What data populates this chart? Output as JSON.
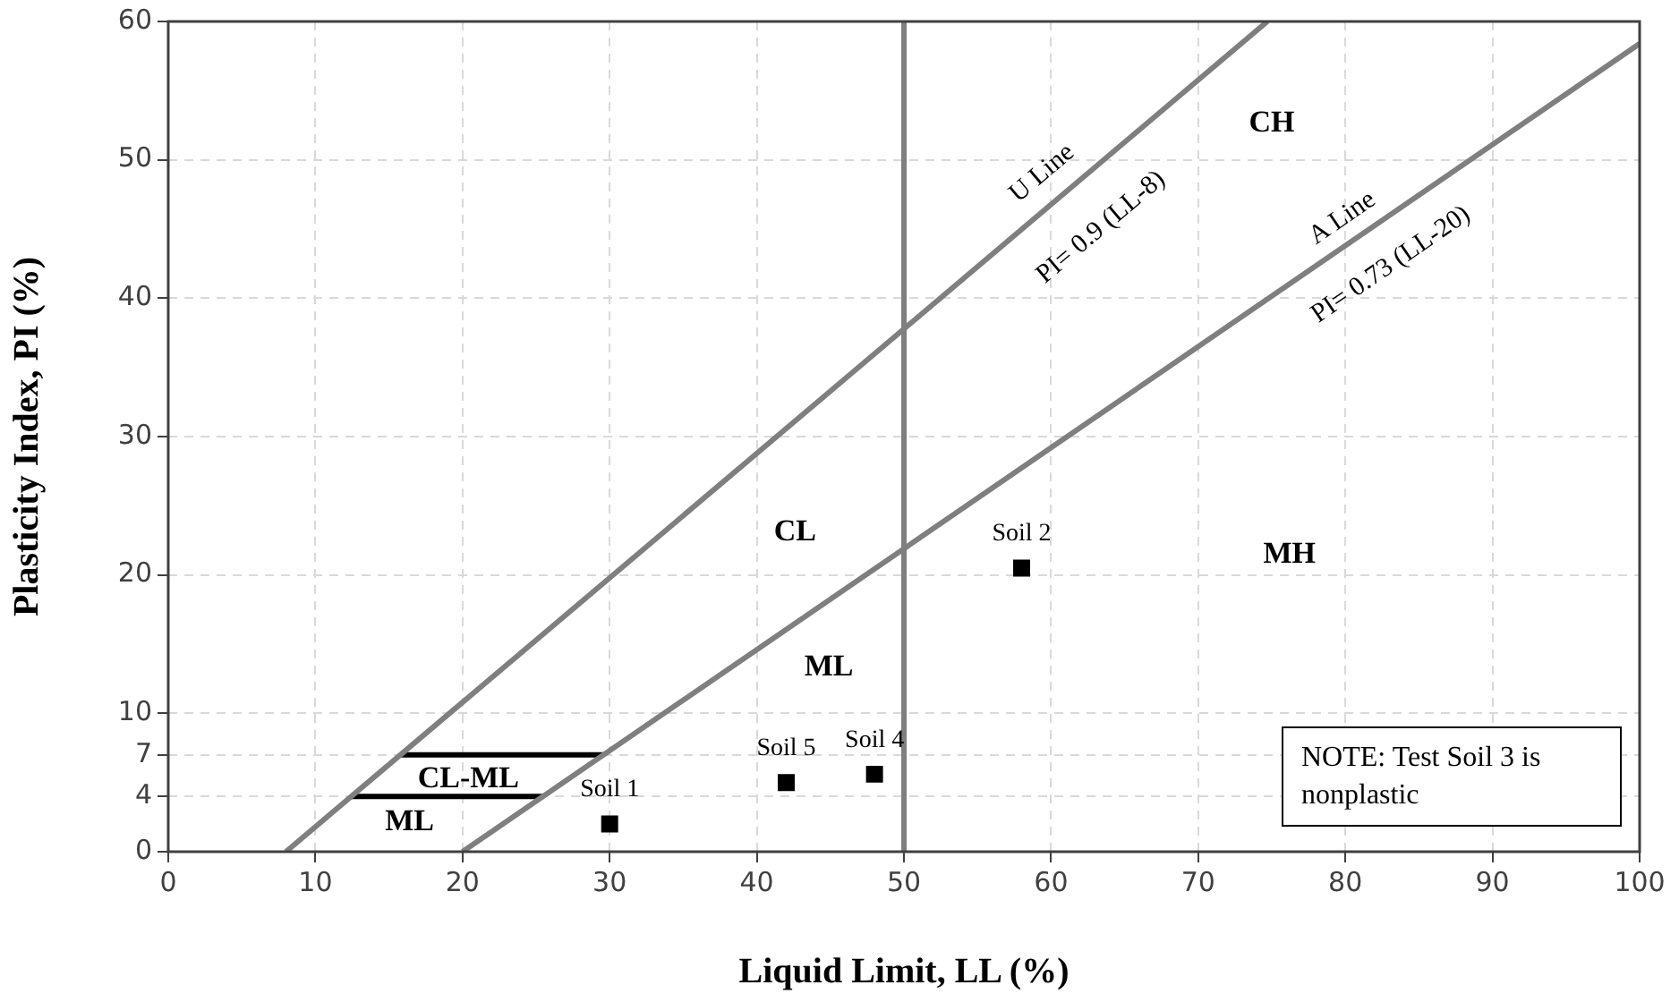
{
  "chart_data": {
    "type": "scatter",
    "xlabel": "Liquid Limit, LL (%)",
    "ylabel": "Plasticity Index, PI (%)",
    "xlim": [
      0,
      100
    ],
    "xticks": [
      0,
      10,
      20,
      30,
      40,
      50,
      60,
      70,
      80,
      90,
      100
    ],
    "ylim": [
      0,
      60
    ],
    "yticks": [
      0,
      4,
      7,
      10,
      20,
      30,
      40,
      50,
      60
    ],
    "grid": true,
    "legend": false,
    "series": [
      {
        "type": "line",
        "x": [
          8,
          74.7
        ],
        "values": [
          0,
          60
        ],
        "color": "#7f7f7f",
        "marker": "none"
      },
      {
        "type": "line",
        "x": [
          20,
          100
        ],
        "values": [
          0,
          58.4
        ],
        "color": "#7f7f7f",
        "marker": "none"
      },
      {
        "type": "line",
        "x": [
          15.8,
          29.6
        ],
        "values": [
          7,
          7
        ],
        "color": "#000000",
        "marker": "none"
      },
      {
        "type": "line",
        "x": [
          12.4,
          25.5
        ],
        "values": [
          4,
          4
        ],
        "color": "#000000",
        "marker": "none"
      },
      {
        "name": "Soil 1",
        "x": [
          30
        ],
        "values": [
          2
        ],
        "color": "#000000",
        "marker": "square"
      },
      {
        "name": "Soil 2",
        "x": [
          58
        ],
        "values": [
          20.5
        ],
        "color": "#000000",
        "marker": "square"
      },
      {
        "name": "Soil 4",
        "x": [
          48
        ],
        "values": [
          5.6
        ],
        "color": "#000000",
        "marker": "square"
      },
      {
        "name": "Soil 5",
        "x": [
          42
        ],
        "values": [
          5
        ],
        "color": "#000000",
        "marker": "square"
      }
    ],
    "ref_lines": [
      {
        "axis": "x",
        "value": 50,
        "color": "#7f7f7f"
      }
    ],
    "annotations": [
      "U Line",
      "PI= 0.9 (LL-8)",
      "A Line",
      "PI= 0.73 (LL-20)",
      "CH",
      "MH",
      "CL",
      "ML",
      "CL-ML",
      "ML",
      "NOTE: Test Soil 3 is nonplastic"
    ]
  }
}
